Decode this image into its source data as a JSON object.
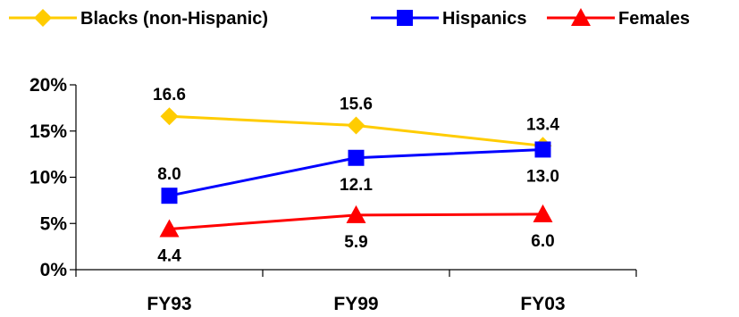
{
  "chart_data": {
    "type": "line",
    "categories": [
      "FY93",
      "FY99",
      "FY03"
    ],
    "ylim": [
      0,
      20
    ],
    "yticks": [
      0,
      5,
      10,
      15,
      20
    ],
    "ytick_labels": [
      "0%",
      "5%",
      "10%",
      "15%",
      "20%"
    ],
    "legend_position": "top",
    "grid": false,
    "series": [
      {
        "name": "Blacks (non-Hispanic)",
        "color": "#FFCC00",
        "marker": "diamond",
        "values": [
          16.6,
          15.6,
          13.4
        ],
        "labels": [
          "16.6",
          "15.6",
          "13.4"
        ],
        "label_position": [
          "above",
          "above",
          "above"
        ]
      },
      {
        "name": "Hispanics",
        "color": "#0000FF",
        "marker": "square",
        "values": [
          8.0,
          12.1,
          13.0
        ],
        "labels": [
          "8.0",
          "12.1",
          "13.0"
        ],
        "label_position": [
          "above",
          "below",
          "below"
        ]
      },
      {
        "name": "Females",
        "color": "#FF0000",
        "marker": "triangle",
        "values": [
          4.4,
          5.9,
          6.0
        ],
        "labels": [
          "4.4",
          "5.9",
          "6.0"
        ],
        "label_position": [
          "below",
          "below",
          "below"
        ]
      }
    ]
  }
}
